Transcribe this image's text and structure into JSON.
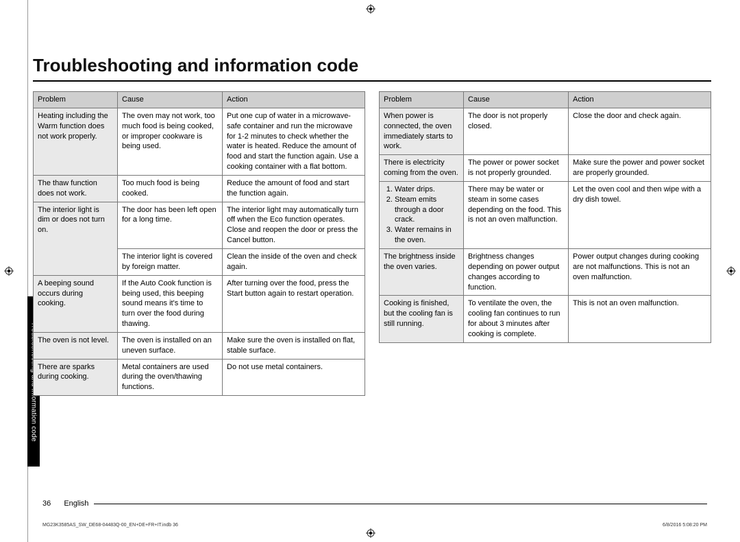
{
  "title": "Troubleshooting and information code",
  "headers": {
    "problem": "Problem",
    "cause": "Cause",
    "action": "Action"
  },
  "tableLeft": [
    {
      "problem": "Heating including the Warm function does not work properly.",
      "cause": "The oven may not work, too much food is being cooked, or improper cookware is being used.",
      "action": "Put one cup of water in a microwave-safe container and run the microwave for 1-2 minutes to check whether the water is heated. Reduce the amount of food and start the function again. Use a cooking container with a flat bottom."
    },
    {
      "problem": "The thaw function does not work.",
      "cause": "Too much food is being cooked.",
      "action": "Reduce the amount of food and start the function again."
    },
    {
      "problem": "The interior light is dim or does not turn on.",
      "cause": "The door has been left open for a long time.",
      "action": "The interior light may automatically turn off when the Eco function operates. Close and reopen the door or press the Cancel button.",
      "rowspan": 2
    },
    {
      "cause": "The interior light is covered by foreign matter.",
      "action": "Clean the inside of the oven and check again."
    },
    {
      "problem": "A beeping sound occurs during cooking.",
      "cause": "If the Auto Cook function is being used, this beeping sound means it's time to turn over the food during thawing.",
      "action": "After turning over the food, press the Start button again to restart operation."
    },
    {
      "problem": "The oven is not level.",
      "cause": "The oven is installed on an uneven surface.",
      "action": "Make sure the oven is installed on flat, stable surface."
    },
    {
      "problem": "There are sparks during cooking.",
      "cause": "Metal containers are used during the oven/thawing functions.",
      "action": "Do not use metal containers."
    }
  ],
  "tableRight": [
    {
      "problem": "When power is connected, the oven immediately starts to work.",
      "cause": "The door is not properly closed.",
      "action": "Close the door and check again."
    },
    {
      "problem": "There is electricity coming from the oven.",
      "cause": "The power or power socket is not properly grounded.",
      "action": "Make sure the power and power socket are properly grounded."
    },
    {
      "problemList": [
        "Water drips.",
        "Steam emits through a door crack.",
        "Water remains in the oven."
      ],
      "cause": "There may be water or steam in some cases depending on the food. This is not an oven malfunction.",
      "action": "Let the oven cool and then wipe with a dry dish towel."
    },
    {
      "problem": "The brightness inside the oven varies.",
      "cause": "Brightness changes depending on power output changes according to function.",
      "action": "Power output changes during cooking are not malfunctions. This is not an oven malfunction."
    },
    {
      "problem": "Cooking is finished, but the cooling fan is still running.",
      "cause": "To ventilate the oven, the cooling fan continues to run for about 3 minutes after cooking is complete.",
      "action": "This is not an oven malfunction."
    }
  ],
  "sideTab": "Troubleshooting and information code",
  "footer": {
    "pageNum": "36",
    "lang": "English"
  },
  "fine": {
    "left": "MG23K3585AS_SW_DE68-04483Q-00_EN+DE+FR+IT.indb   36",
    "right": "6/8/2016   5:08:20 PM"
  },
  "colors": {
    "headerBg": "#cfcfcf",
    "problemBg": "#e9e9e9",
    "border": "#777777",
    "tabBg": "#000000",
    "tabFg": "#ffffff"
  }
}
